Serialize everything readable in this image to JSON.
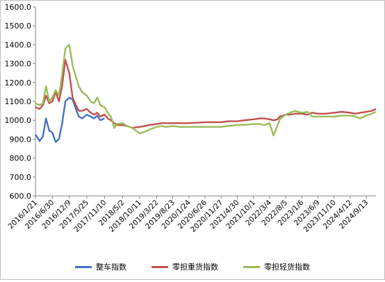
{
  "chart_data": {
    "type": "line",
    "title": "",
    "xlabel": "",
    "ylabel": "",
    "ylim": [
      600,
      1600
    ],
    "yticks": [
      600,
      700,
      800,
      900,
      1000,
      1100,
      1200,
      1300,
      1400,
      1500,
      1600
    ],
    "ytick_labels": [
      "600.0",
      "700.0",
      "800.0",
      "900.0",
      "1000.0",
      "1100.0",
      "1200.0",
      "1300.0",
      "1400.0",
      "1500.0",
      "1600.0"
    ],
    "x_tick_labels": [
      "2016/1/21",
      "2016/6/30",
      "2016/12/9",
      "2017/5/25",
      "2017/11/10",
      "2018/5/2",
      "2018/10/11",
      "2019/3/22",
      "2019/8/23",
      "2020/1/24",
      "2020/6/26",
      "2020/11/27",
      "2021/4/30",
      "2021/10/1",
      "2022/3/4",
      "2022/8/5",
      "2023/1/6",
      "2023/6/9",
      "2023/11/10",
      "2024/4/12",
      "2024/9/13"
    ],
    "grid": false,
    "legend_position": "bottom",
    "x": [
      "2016/1/21",
      "2016/3/1",
      "2016/4/1",
      "2016/5/1",
      "2016/6/1",
      "2016/6/30",
      "2016/8/1",
      "2016/9/1",
      "2016/10/1",
      "2016/11/1",
      "2016/12/9",
      "2017/1/10",
      "2017/2/10",
      "2017/3/10",
      "2017/4/10",
      "2017/5/25",
      "2017/7/1",
      "2017/8/1",
      "2017/9/1",
      "2017/10/1",
      "2017/11/10",
      "2017/12/10",
      "2018/1/10",
      "2018/2/10",
      "2018/3/10",
      "2018/5/2",
      "2018/6/10",
      "2018/8/1",
      "2018/10/11",
      "2018/12/1",
      "2019/1/10",
      "2019/3/22",
      "2019/5/10",
      "2019/6/20",
      "2019/8/23",
      "2019/11/1",
      "2020/1/24",
      "2020/6/26",
      "2020/11/27",
      "2021/2/1",
      "2021/4/30",
      "2021/7/1",
      "2021/10/1",
      "2021/12/1",
      "2022/1/15",
      "2022/3/4",
      "2022/4/10",
      "2022/5/20",
      "2022/6/10",
      "2022/7/10",
      "2022/8/5",
      "2022/9/15",
      "2022/11/1",
      "2023/1/6",
      "2023/3/1",
      "2023/4/15",
      "2023/6/9",
      "2023/8/20",
      "2023/11/10",
      "2024/1/20",
      "2024/4/12",
      "2024/6/1",
      "2024/7/15",
      "2024/9/13",
      "2024/11/1",
      "2024/12/13"
    ],
    "series": [
      {
        "name": "整车指数",
        "color": "#4472c4",
        "values": [
          925,
          890,
          915,
          1010,
          945,
          935,
          885,
          900,
          980,
          1100,
          1120,
          1110,
          1060,
          1020,
          1010,
          1030,
          1020,
          1010,
          1025,
          1000,
          1010,
          null,
          null,
          null,
          null,
          null,
          null,
          null,
          null,
          null,
          null,
          null,
          null,
          null,
          null,
          null,
          null,
          null,
          null,
          null,
          null,
          null,
          null,
          null,
          null,
          null,
          null,
          null,
          null,
          null,
          null,
          null,
          null,
          null,
          null,
          null,
          null,
          null,
          null,
          null,
          null,
          null,
          null,
          null,
          null,
          null
        ]
      },
      {
        "name": "零担重货指数",
        "color": "#c0504d",
        "values": [
          1070,
          1060,
          1080,
          1130,
          1090,
          1100,
          1150,
          1100,
          1180,
          1320,
          1250,
          1120,
          1080,
          1050,
          1050,
          1060,
          1040,
          1030,
          1040,
          1020,
          1030,
          1010,
          1000,
          985,
          975,
          975,
          970,
          960,
          965,
          970,
          975,
          980,
          985,
          985,
          985,
          985,
          985,
          990,
          990,
          995,
          995,
          1000,
          1005,
          1010,
          1010,
          1005,
          1000,
          1005,
          1020,
          1025,
          1030,
          1030,
          1035,
          1035,
          1030,
          1040,
          1035,
          1035,
          1040,
          1045,
          1040,
          1035,
          1040,
          1045,
          1050,
          1060
        ]
      },
      {
        "name": "零担轻货指数",
        "color": "#9bbb59",
        "values": [
          1090,
          1080,
          1090,
          1180,
          1100,
          1120,
          1160,
          1130,
          1240,
          1380,
          1400,
          1290,
          1230,
          1180,
          1150,
          1130,
          1100,
          1090,
          1120,
          1080,
          1070,
          1040,
          1020,
          960,
          980,
          985,
          970,
          960,
          930,
          940,
          950,
          965,
          970,
          965,
          970,
          965,
          965,
          965,
          965,
          970,
          975,
          975,
          980,
          980,
          975,
          985,
          920,
          975,
          1005,
          1020,
          1030,
          1040,
          1050,
          1040,
          1045,
          1020,
          1020,
          1020,
          1020,
          1025,
          1025,
          1020,
          1010,
          1025,
          1035,
          1045
        ]
      }
    ]
  }
}
